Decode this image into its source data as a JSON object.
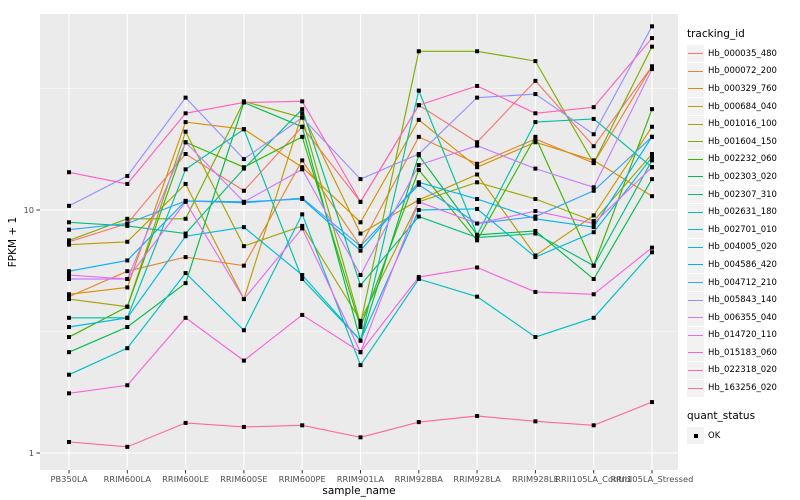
{
  "chart_data": {
    "type": "line",
    "title": "",
    "xlabel": "sample_name",
    "ylabel": "FPKM + 1",
    "y_scale": "log10",
    "y_ticks": [
      1,
      10
    ],
    "y_tick_labels": [
      "1",
      "10"
    ],
    "y_minor_gridlines": [
      3.1623,
      31.623
    ],
    "ylim": [
      0.85,
      64
    ],
    "grid": true,
    "legend_position": "right",
    "panel_background": "#EBEBEB",
    "gridline_color": "#FFFFFF",
    "axis_text_color": "#4D4D4D",
    "axis_title_color": "#000000",
    "tick_color": "#333333",
    "marker": {
      "shape": "square",
      "color": "#000000",
      "size": 4
    },
    "legend": {
      "color_legend_title": "tracking_id",
      "shape_legend_title": "quant_status",
      "shape_legend_items": [
        {
          "label": "OK",
          "shape": "square",
          "color": "#000000"
        }
      ],
      "key_background": "#F2F2F2"
    },
    "x_categories": [
      "PB350LA",
      "RRIM600LA",
      "RRIM600LE",
      "RRIM600SE",
      "RRIM600PE",
      "RRIM901LA",
      "RRIM928BA",
      "RRIM928LA",
      "RRIM928LE",
      "RRII105LA_Control",
      "RRII105LA_Stressed"
    ],
    "series": [
      {
        "name": "Hb_000035_480",
        "color": "#F8766D",
        "values": [
          7.4,
          8.8,
          17,
          12,
          22,
          10.8,
          27,
          19,
          34,
          18.3,
          39
        ]
      },
      {
        "name": "Hb_000072_200",
        "color": "#EA8331",
        "values": [
          4.4,
          5.6,
          6.4,
          5.9,
          16,
          7.1,
          20,
          15.5,
          19.6,
          15.6,
          39
        ]
      },
      {
        "name": "Hb_000329_760",
        "color": "#D89000",
        "values": [
          4.5,
          4.8,
          23,
          21.5,
          15,
          8.9,
          23.5,
          15,
          19,
          16,
          11.4
        ]
      },
      {
        "name": "Hb_000684_040",
        "color": "#C09B00",
        "values": [
          7.2,
          7.4,
          12.8,
          4.3,
          25,
          8.0,
          11,
          14,
          6.5,
          9.5,
          22
        ]
      },
      {
        "name": "Hb_001016_100",
        "color": "#A3A500",
        "values": [
          4.3,
          4.0,
          21,
          7.1,
          8.6,
          3.5,
          10.8,
          13,
          11.1,
          9.0,
          17
        ]
      },
      {
        "name": "Hb_001604_150",
        "color": "#7CAE00",
        "values": [
          7.5,
          9.2,
          9.2,
          28,
          24,
          3.4,
          45,
          45,
          41,
          15.6,
          47
        ]
      },
      {
        "name": "Hb_002232_060",
        "color": "#39B600",
        "values": [
          3.0,
          4.0,
          19,
          15,
          20,
          3.3,
          14.6,
          7.5,
          20,
          5.9,
          26
        ]
      },
      {
        "name": "Hb_002303_020",
        "color": "#00BB4E",
        "values": [
          2.6,
          3.3,
          5.0,
          27.7,
          22,
          2.9,
          16.8,
          7.9,
          8.2,
          5.2,
          13.4
        ]
      },
      {
        "name": "Hb_002307_310",
        "color": "#00BF7D",
        "values": [
          8.9,
          8.6,
          8.0,
          14.8,
          26,
          4.9,
          9.4,
          7.7,
          8.0,
          5.9,
          16
        ]
      },
      {
        "name": "Hb_002631_180",
        "color": "#00C1A3",
        "values": [
          3.6,
          3.6,
          14.7,
          21.5,
          5.2,
          2.9,
          31,
          7.9,
          23,
          23.7,
          15
        ]
      },
      {
        "name": "Hb_002701_010",
        "color": "#00BFC4",
        "values": [
          2.1,
          2.7,
          5.5,
          3.2,
          9.6,
          2.3,
          5.2,
          4.4,
          3.0,
          3.6,
          6.7
        ]
      },
      {
        "name": "Hb_004005_020",
        "color": "#00BAE0",
        "values": [
          3.3,
          3.6,
          7.8,
          8.5,
          5.4,
          2.9,
          10,
          10.1,
          6.4,
          8.1,
          16.5
        ]
      },
      {
        "name": "Hb_004586_420",
        "color": "#00B0F6",
        "values": [
          5.6,
          6.2,
          10.9,
          10.8,
          11.1,
          6.8,
          13,
          11.1,
          9.2,
          8.5,
          20
        ]
      },
      {
        "name": "Hb_004712_210",
        "color": "#35A2FF",
        "values": [
          8.3,
          8.8,
          10.9,
          10.7,
          11.2,
          7.1,
          12.7,
          8.8,
          9.4,
          12.0,
          20
        ]
      },
      {
        "name": "Hb_005843_140",
        "color": "#9590FF",
        "values": [
          10.4,
          13.8,
          29,
          16.2,
          24,
          13.4,
          17,
          29,
          30,
          20.5,
          57
        ]
      },
      {
        "name": "Hb_006355_040",
        "color": "#C77CFF",
        "values": [
          5.2,
          5.2,
          19,
          10.8,
          14.7,
          5.4,
          15.3,
          18.4,
          14.8,
          12.4,
          38
        ]
      },
      {
        "name": "Hb_014720_110",
        "color": "#E76BF3",
        "values": [
          5.4,
          5.2,
          10.8,
          4.3,
          8.4,
          2.6,
          10.8,
          8.8,
          9.9,
          8.8,
          15
        ]
      },
      {
        "name": "Hb_015183_060",
        "color": "#FA62DB",
        "values": [
          1.76,
          1.9,
          3.6,
          2.4,
          3.7,
          2.6,
          5.3,
          5.8,
          4.6,
          4.5,
          7.0
        ]
      },
      {
        "name": "Hb_022318_020",
        "color": "#FF62BC",
        "values": [
          14.3,
          12.8,
          25,
          27.7,
          28,
          10.8,
          27,
          32.4,
          25,
          26.5,
          51
        ]
      },
      {
        "name": "Hb_163256_020",
        "color": "#FF6A98",
        "values": [
          1.11,
          1.06,
          1.33,
          1.28,
          1.3,
          1.16,
          1.34,
          1.42,
          1.35,
          1.3,
          1.62
        ]
      }
    ]
  }
}
